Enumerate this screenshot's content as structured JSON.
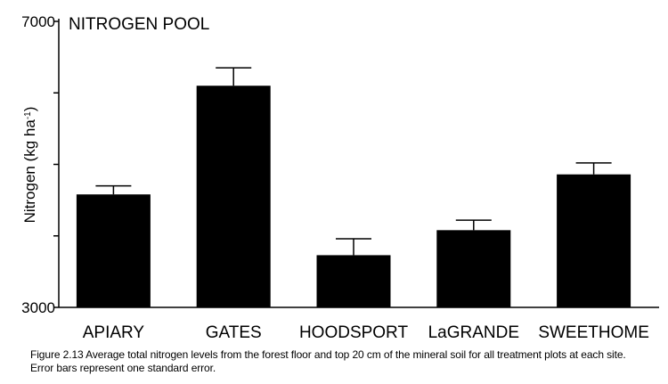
{
  "chart_data": {
    "type": "bar",
    "title": "NITROGEN POOL",
    "ylabel": "Nitrogen (kg ha",
    "ylabel_sup": "-1",
    "ylabel_close": ")",
    "xlabel": "",
    "ylim": [
      3000,
      7000
    ],
    "yticks": [
      "3000",
      "7000"
    ],
    "categories": [
      "APIARY",
      "GATES",
      "HOODSPORT",
      "LaGRANDE",
      "SWEETHOME"
    ],
    "series": [
      {
        "values": [
          4580,
          6100,
          3730,
          4080,
          4860
        ],
        "errors": [
          120,
          250,
          230,
          140,
          160
        ]
      }
    ],
    "colors": {
      "bar": "#000000",
      "axis": "#000000",
      "background": "#ffffff"
    },
    "grid": false,
    "legend": "none"
  },
  "caption": {
    "line1": "Figure 2.13  Average total nitrogen levels from the forest floor and top 20 cm of the mineral soil for all treatment plots at each site.",
    "line2": "Error bars represent one standard error."
  }
}
